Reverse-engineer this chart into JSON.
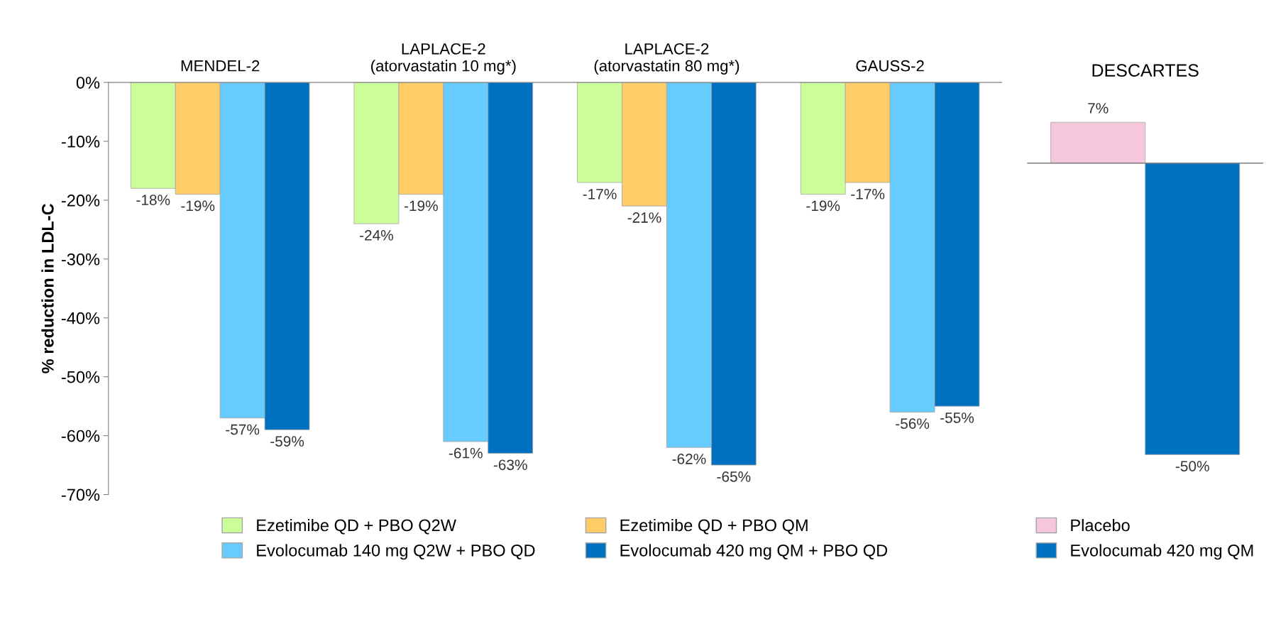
{
  "chart_data": [
    {
      "type": "bar",
      "ylabel": "% reduction in LDL-C",
      "categories": [
        "MENDEL-2",
        "LAPLACE-2 (atorvastatin 10 mg*)",
        "LAPLACE-2 (atorvastatin 80 mg*)",
        "GAUSS-2"
      ],
      "series": [
        {
          "name": "Ezetimibe QD + PBO Q2W",
          "color": "#ccff99",
          "values": [
            -18,
            -24,
            -17,
            -19
          ],
          "value_labels": [
            "-18%",
            "-24%",
            "-17%",
            "-19%"
          ]
        },
        {
          "name": "Ezetimibe QD + PBO QM",
          "color": "#ffcc66",
          "values": [
            -19,
            -19,
            -21,
            -17
          ],
          "value_labels": [
            "-19%",
            "-19%",
            "-21%",
            "-17%"
          ]
        },
        {
          "name": "Evolocumab 140 mg Q2W + PBO QD",
          "color": "#66ccff",
          "values": [
            -57,
            -61,
            -62,
            -56
          ],
          "value_labels": [
            "-57%",
            "-61%",
            "-62%",
            "-56%"
          ]
        },
        {
          "name": "Evolocumab 420 mg QM + PBO QD",
          "color": "#0070c0",
          "values": [
            -59,
            -63,
            -65,
            -55
          ],
          "value_labels": [
            "-59%",
            "-63%",
            "-65%",
            "-55%"
          ]
        }
      ],
      "ylim": [
        -70,
        0
      ],
      "yticks": [
        {
          "value": -70,
          "label": "-70%"
        },
        {
          "value": -60,
          "label": "-60%"
        },
        {
          "value": -50,
          "label": "-50%"
        },
        {
          "value": -40,
          "label": "-40%"
        },
        {
          "value": -30,
          "label": "-30%"
        },
        {
          "value": -20,
          "label": "-20%"
        },
        {
          "value": -10,
          "label": "-10%"
        },
        {
          "value": 0,
          "label": "0%"
        }
      ],
      "grid": false,
      "legend": "bottom"
    },
    {
      "type": "bar",
      "title": "DESCARTES",
      "categories": [
        null
      ],
      "series": [
        {
          "name": "Placebo",
          "color": "#f6c6dc",
          "values": [
            7
          ],
          "value_labels": [
            "7%"
          ]
        },
        {
          "name": "Evolocumab 420 mg QM",
          "color": "#0070c0",
          "values": [
            -50
          ],
          "value_labels": [
            "-50%"
          ]
        }
      ],
      "tick_labels": false,
      "grid": false,
      "legend": "bottom"
    }
  ]
}
